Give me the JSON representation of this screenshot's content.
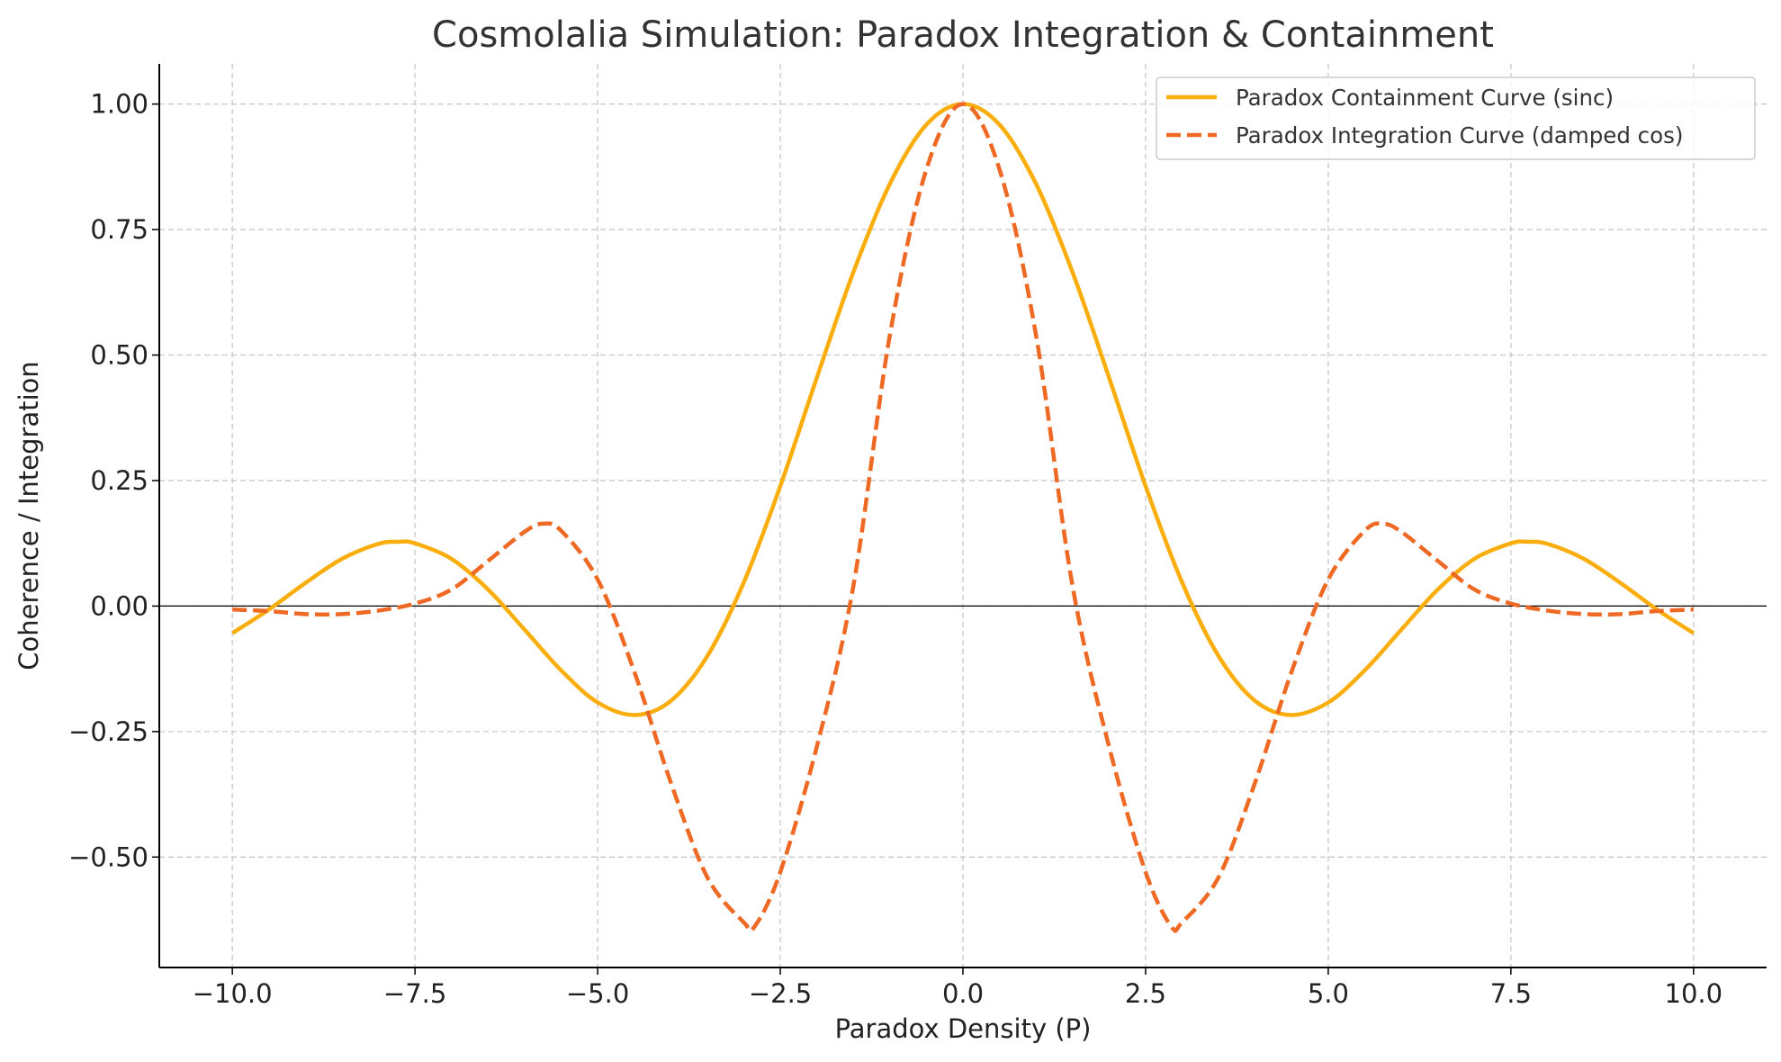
{
  "chart_data": {
    "type": "line",
    "title": "Cosmolalia Simulation: Paradox Integration & Containment",
    "xlabel": "Paradox Density (P)",
    "ylabel": "Coherence / Integration",
    "xlim": [
      -11.0,
      11.0
    ],
    "ylim": [
      -0.72,
      1.08
    ],
    "xticks": [
      -10,
      -7.5,
      -5,
      -2.5,
      0,
      2.5,
      5,
      7.5,
      10
    ],
    "xtick_labels": [
      "−10.0",
      "−7.5",
      "−5.0",
      "−2.5",
      "0.0",
      "2.5",
      "5.0",
      "7.5",
      "10.0"
    ],
    "yticks": [
      -0.5,
      -0.25,
      0,
      0.25,
      0.5,
      0.75,
      1.0
    ],
    "ytick_labels": [
      "−0.50",
      "−0.25",
      "0.00",
      "0.25",
      "0.50",
      "0.75",
      "1.00"
    ],
    "grid": true,
    "legend_position": "top-right",
    "zero_line": true,
    "series": [
      {
        "name": "Paradox Containment Curve (sinc)",
        "color": "#F9AE0E",
        "line_style": "solid",
        "x": [
          -10,
          -9.5,
          -9,
          -8.5,
          -8,
          -7.72,
          -7.5,
          -7,
          -6.5,
          -6,
          -5.5,
          -5,
          -4.49,
          -4,
          -3.5,
          -3,
          -2.5,
          -2,
          -1.5,
          -1,
          -0.5,
          0,
          0.5,
          1,
          1.5,
          2,
          2.5,
          3,
          3.5,
          4,
          4.49,
          5,
          5.5,
          6,
          6.5,
          7,
          7.5,
          7.72,
          8,
          8.5,
          9,
          9.5,
          10
        ],
        "y": [
          -0.054,
          -0.007,
          0.046,
          0.094,
          0.124,
          0.128,
          0.125,
          0.094,
          0.033,
          -0.047,
          -0.128,
          -0.192,
          -0.217,
          -0.189,
          -0.1,
          0.047,
          0.239,
          0.455,
          0.665,
          0.841,
          0.959,
          1.0,
          0.959,
          0.841,
          0.665,
          0.455,
          0.239,
          0.047,
          -0.1,
          -0.189,
          -0.217,
          -0.192,
          -0.128,
          -0.047,
          0.033,
          0.094,
          0.125,
          0.128,
          0.124,
          0.094,
          0.046,
          -0.007,
          -0.054
        ]
      },
      {
        "name": "Paradox Integration Curve (damped cos)",
        "color": "#EE6A24",
        "line_style": "dashed",
        "x": [
          -10,
          -9.5,
          -9,
          -8.5,
          -8,
          -7.5,
          -7,
          -6.5,
          -6,
          -5.75,
          -5.5,
          -5,
          -4.5,
          -4,
          -3.5,
          -3,
          -2.85,
          -2.5,
          -2,
          -1.5,
          -1,
          -0.5,
          0,
          0.5,
          1,
          1.5,
          2,
          2.5,
          2.85,
          3,
          3.5,
          4,
          4.5,
          5,
          5.5,
          5.75,
          6,
          6.5,
          7,
          7.5,
          8,
          8.5,
          9,
          9.5,
          10
        ],
        "y": [
          -0.007,
          -0.01,
          -0.016,
          -0.016,
          -0.009,
          0.005,
          0.033,
          0.09,
          0.148,
          0.164,
          0.15,
          0.053,
          -0.13,
          -0.351,
          -0.54,
          -0.63,
          -0.638,
          -0.53,
          -0.28,
          0.04,
          0.54,
          0.87,
          1.0,
          0.87,
          0.54,
          0.04,
          -0.28,
          -0.53,
          -0.638,
          -0.63,
          -0.54,
          -0.351,
          -0.13,
          0.053,
          0.15,
          0.164,
          0.148,
          0.09,
          0.033,
          0.005,
          -0.009,
          -0.016,
          -0.016,
          -0.01,
          -0.007
        ]
      }
    ]
  }
}
